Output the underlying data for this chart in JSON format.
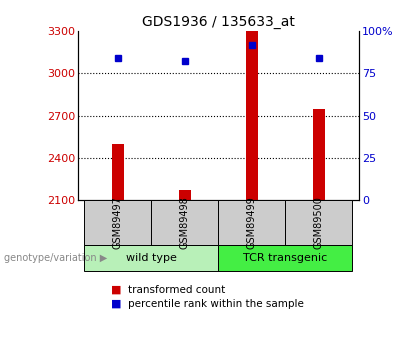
{
  "title": "GDS1936 / 135633_at",
  "samples": [
    "GSM89497",
    "GSM89498",
    "GSM89499",
    "GSM89500"
  ],
  "red_values": [
    2500,
    2175,
    3300,
    2750
  ],
  "blue_values": [
    84,
    82,
    92,
    84
  ],
  "ylim_left": [
    2100,
    3300
  ],
  "ylim_right": [
    0,
    100
  ],
  "yticks_left": [
    2100,
    2400,
    2700,
    3000,
    3300
  ],
  "yticks_right": [
    0,
    25,
    50,
    75,
    100
  ],
  "groups": [
    {
      "label": "wild type",
      "samples": [
        0,
        1
      ],
      "color": "#b8f0b8"
    },
    {
      "label": "TCR transgenic",
      "samples": [
        2,
        3
      ],
      "color": "#44ee44"
    }
  ],
  "red_color": "#cc0000",
  "blue_color": "#0000cc",
  "bar_width": 0.18,
  "plot_bg": "#ffffff",
  "label_color_left": "#cc0000",
  "label_color_right": "#0000cc",
  "legend_red": "transformed count",
  "legend_blue": "percentile rank within the sample",
  "group_label": "genotype/variation"
}
